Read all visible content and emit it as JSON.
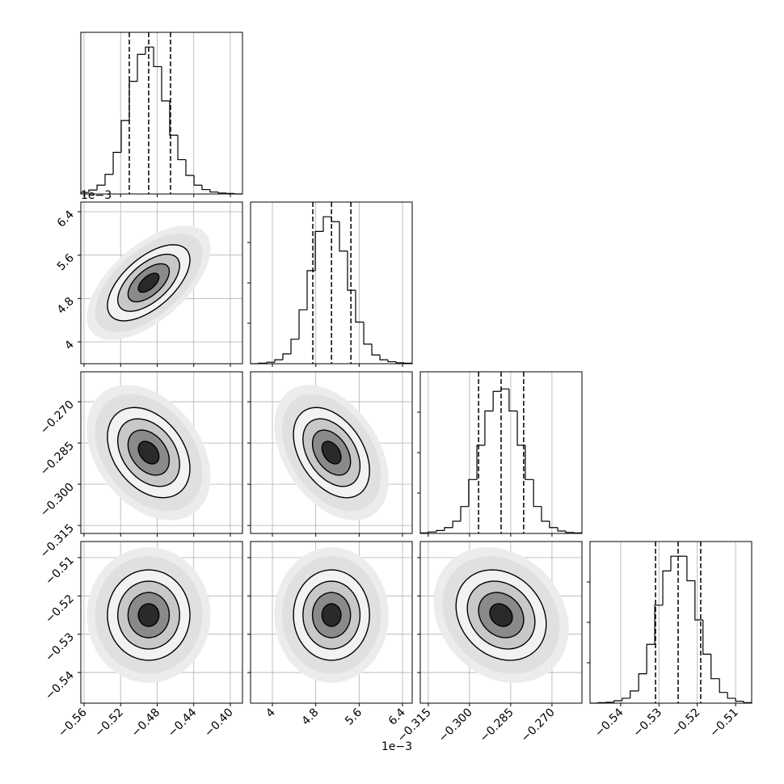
{
  "chart_data": {
    "type": "corner",
    "parameters": [
      {
        "lim": [
          -0.5635,
          -0.3867
        ],
        "ticks": [
          {
            "value": -0.56,
            "label": "−0.56"
          },
          {
            "value": -0.52,
            "label": "−0.52"
          },
          {
            "value": -0.48,
            "label": "−0.48"
          },
          {
            "value": -0.44,
            "label": "−0.44"
          },
          {
            "value": -0.4,
            "label": "−0.40"
          }
        ],
        "quantiles": [
          -0.5105,
          -0.4893,
          -0.4654
        ],
        "bins": [
          -0.5635,
          -0.5547,
          -0.5458,
          -0.537,
          -0.5281,
          -0.5193,
          -0.5105,
          -0.5016,
          -0.4928,
          -0.4839,
          -0.4751,
          -0.4663,
          -0.4574,
          -0.4486,
          -0.4397,
          -0.4309,
          -0.4221,
          -0.4132,
          -0.4044,
          -0.3955,
          -0.3867
        ],
        "counts": [
          3,
          8,
          18,
          40,
          85,
          150,
          230,
          285,
          300,
          260,
          190,
          120,
          70,
          38,
          18,
          9,
          4,
          2,
          1,
          0
        ],
        "hist_ylim": [
          0,
          330
        ]
      },
      {
        "lim": [
          3.597,
          6.579
        ],
        "ticks": [
          4.0,
          4.8,
          5.6,
          6.4
        ],
        "offset_label": "1e−3",
        "quantiles": [
          4.746,
          5.09,
          5.448
        ],
        "bins": [
          3.597,
          3.746,
          3.895,
          4.044,
          4.193,
          4.343,
          4.492,
          4.641,
          4.79,
          4.939,
          5.088,
          5.237,
          5.386,
          5.535,
          5.685,
          5.834,
          5.983,
          6.132,
          6.281,
          6.43,
          6.579
        ],
        "counts": [
          0,
          1,
          3,
          8,
          20,
          50,
          110,
          190,
          270,
          300,
          290,
          230,
          150,
          85,
          40,
          18,
          8,
          4,
          2,
          1
        ],
        "hist_ylim": [
          0,
          330
        ]
      },
      {
        "lim": [
          -0.3179,
          -0.2591
        ],
        "ticks": [
          {
            "value": -0.315,
            "label": "−0.315"
          },
          {
            "value": -0.3,
            "label": "−0.300"
          },
          {
            "value": -0.285,
            "label": "−0.285"
          },
          {
            "value": -0.27,
            "label": "−0.270"
          }
        ],
        "quantiles": [
          -0.2967,
          -0.2885,
          -0.2803
        ],
        "bins": [
          -0.3179,
          -0.315,
          -0.312,
          -0.3091,
          -0.3061,
          -0.3032,
          -0.3003,
          -0.2973,
          -0.2944,
          -0.2914,
          -0.2885,
          -0.2856,
          -0.2826,
          -0.2797,
          -0.2767,
          -0.2738,
          -0.2709,
          -0.2679,
          -0.265,
          -0.262,
          -0.2591
        ],
        "counts": [
          1,
          3,
          6,
          12,
          25,
          55,
          110,
          180,
          250,
          290,
          295,
          250,
          180,
          110,
          55,
          25,
          12,
          5,
          2,
          1
        ],
        "hist_ylim": [
          0,
          330
        ]
      },
      {
        "lim": [
          -0.548,
          -0.5058
        ],
        "ticks": [
          {
            "value": -0.54,
            "label": "−0.54"
          },
          {
            "value": -0.53,
            "label": "−0.53"
          },
          {
            "value": -0.52,
            "label": "−0.52"
          },
          {
            "value": -0.51,
            "label": "−0.51"
          }
        ],
        "quantiles": [
          -0.5309,
          -0.525,
          -0.5191
        ],
        "bins": [
          -0.548,
          -0.5459,
          -0.5438,
          -0.5417,
          -0.5396,
          -0.5375,
          -0.5353,
          -0.5332,
          -0.5311,
          -0.529,
          -0.5269,
          -0.5248,
          -0.5227,
          -0.5206,
          -0.5185,
          -0.5164,
          -0.5142,
          -0.5121,
          -0.51,
          -0.5079,
          -0.5058
        ],
        "counts": [
          0,
          1,
          2,
          5,
          10,
          25,
          60,
          120,
          200,
          270,
          300,
          300,
          250,
          170,
          100,
          50,
          22,
          10,
          4,
          1
        ],
        "hist_ylim": [
          0,
          330
        ]
      }
    ],
    "pairs": [
      {
        "x": 0,
        "y": 1,
        "correlation": 0.6
      },
      {
        "x": 0,
        "y": 2,
        "correlation": -0.35
      },
      {
        "x": 1,
        "y": 2,
        "correlation": -0.4
      },
      {
        "x": 0,
        "y": 3,
        "correlation": 0.0
      },
      {
        "x": 1,
        "y": 3,
        "correlation": 0.0
      },
      {
        "x": 2,
        "y": 3,
        "correlation": -0.2
      }
    ],
    "grid": true
  }
}
